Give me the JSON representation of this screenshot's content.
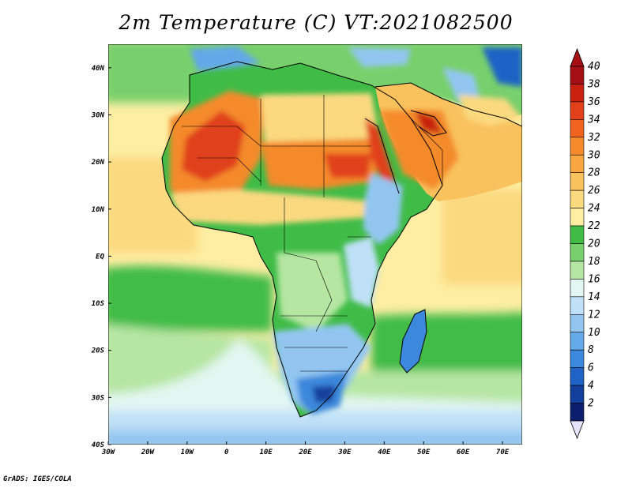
{
  "title": "2m Temperature (C) VT:2021082500",
  "footer": "GrADS: IGES/COLA",
  "map": {
    "lon_range": [
      -30,
      75
    ],
    "lat_range": [
      -40,
      45
    ],
    "lon_ticks": [
      {
        "value": -30,
        "label": "30W"
      },
      {
        "value": -20,
        "label": "20W"
      },
      {
        "value": -10,
        "label": "10W"
      },
      {
        "value": 0,
        "label": "0"
      },
      {
        "value": 10,
        "label": "10E"
      },
      {
        "value": 20,
        "label": "20E"
      },
      {
        "value": 30,
        "label": "30E"
      },
      {
        "value": 40,
        "label": "40E"
      },
      {
        "value": 50,
        "label": "50E"
      },
      {
        "value": 60,
        "label": "60E"
      },
      {
        "value": 70,
        "label": "70E"
      }
    ],
    "lat_ticks": [
      {
        "value": 40,
        "label": "40N"
      },
      {
        "value": 30,
        "label": "30N"
      },
      {
        "value": 20,
        "label": "20N"
      },
      {
        "value": 10,
        "label": "10N"
      },
      {
        "value": 0,
        "label": "EQ"
      },
      {
        "value": -10,
        "label": "10S"
      },
      {
        "value": -20,
        "label": "20S"
      },
      {
        "value": -30,
        "label": "30S"
      },
      {
        "value": -40,
        "label": "40S"
      }
    ]
  },
  "colorbar": {
    "levels": [
      {
        "label": "40",
        "color": "#a50f15"
      },
      {
        "label": "38",
        "color": "#c8210f"
      },
      {
        "label": "36",
        "color": "#e1401a"
      },
      {
        "label": "34",
        "color": "#f0641f"
      },
      {
        "label": "32",
        "color": "#f48a2a"
      },
      {
        "label": "30",
        "color": "#f7a640"
      },
      {
        "label": "28",
        "color": "#f9c25d"
      },
      {
        "label": "26",
        "color": "#fbd97f"
      },
      {
        "label": "24",
        "color": "#fdeea2"
      },
      {
        "label": "22",
        "color": "#3fbc46"
      },
      {
        "label": "20",
        "color": "#78d06c"
      },
      {
        "label": "18",
        "color": "#b5e6a2"
      },
      {
        "label": "16",
        "color": "#e3f7f2"
      },
      {
        "label": "14",
        "color": "#bfe0f7"
      },
      {
        "label": "12",
        "color": "#92c6f1"
      },
      {
        "label": "10",
        "color": "#64a9e8"
      },
      {
        "label": "8",
        "color": "#3b88dc"
      },
      {
        "label": "6",
        "color": "#1f63c6"
      },
      {
        "label": "4",
        "color": "#123f9c"
      },
      {
        "label": "2",
        "color": "#0b1f6e"
      }
    ],
    "top_color": "#a50f15",
    "bottom_color": "#e6e2fb"
  },
  "field_colors": {
    "ocean_warm": "#fdeea2",
    "ocean_mid": "#fbd97f",
    "ocean_cool": "#78d06c",
    "ocean_cold": "#e3f7f2",
    "land_green": "#3fbc46",
    "land_hot": "#f48a2a",
    "land_veryhot": "#e1401a",
    "land_blue": "#92c6f1",
    "land_darkblue": "#123f9c",
    "coast": "#000000"
  }
}
